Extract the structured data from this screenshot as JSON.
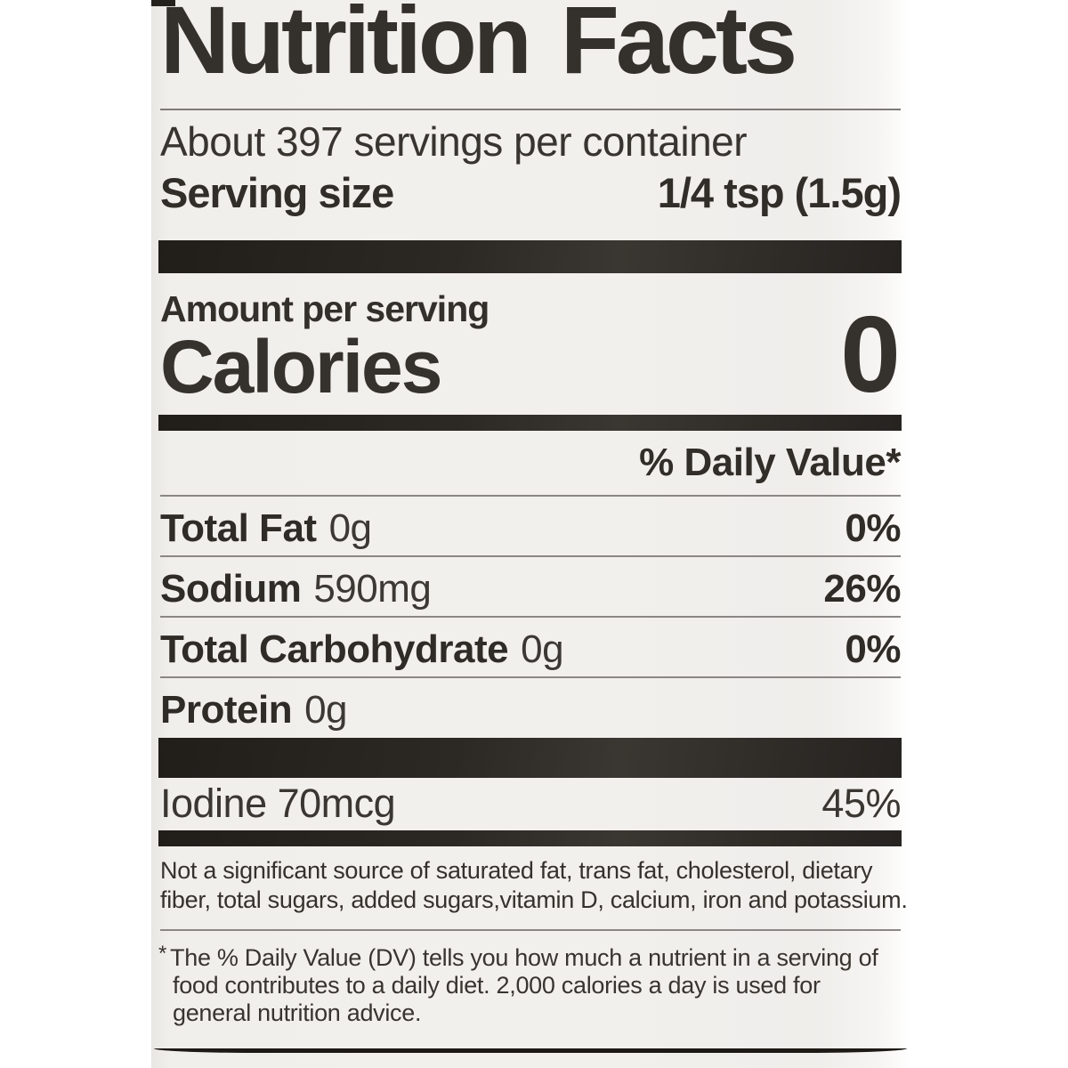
{
  "label": {
    "title": "Nutrition Facts",
    "servings_line": "About 397 servings per container",
    "serving_size": {
      "label": "Serving size",
      "value": "1/4 tsp (1.5g)"
    },
    "amount_per_serving": "Amount per serving",
    "calories": {
      "label": "Calories",
      "value": "0"
    },
    "daily_value_header": "% Daily Value*",
    "nutrients": [
      {
        "name": "Total Fat",
        "amount": "0g",
        "daily_value": "0%"
      },
      {
        "name": "Sodium",
        "amount": "590mg",
        "daily_value": "26%"
      },
      {
        "name": "Total Carbohydrate",
        "amount": "0g",
        "daily_value": "0%"
      },
      {
        "name": "Protein",
        "amount": "0g",
        "daily_value": ""
      },
      {
        "name": "Iodine",
        "amount": "70mcg",
        "daily_value": "45%"
      }
    ],
    "not_significant_lines": [
      "Not a significant source of saturated fat, trans fat, cholesterol, dietary",
      "fiber, total sugars, added sugars,vitamin D, calcium, iron and potassium."
    ],
    "footnote_marker": "*",
    "footnote_lines": [
      "The % Daily Value (DV) tells you how much a nutrient in a serving of",
      "food contributes to a daily diet. 2,000 calories a day is used for",
      "general nutrition advice."
    ],
    "colors": {
      "page_bg": "#ffffff",
      "label_bg": "#f1efec",
      "text_dark": "#2f2b26",
      "text_regular": "#3a3631",
      "bar": "#2c2824",
      "rule": "#8a8784"
    }
  }
}
